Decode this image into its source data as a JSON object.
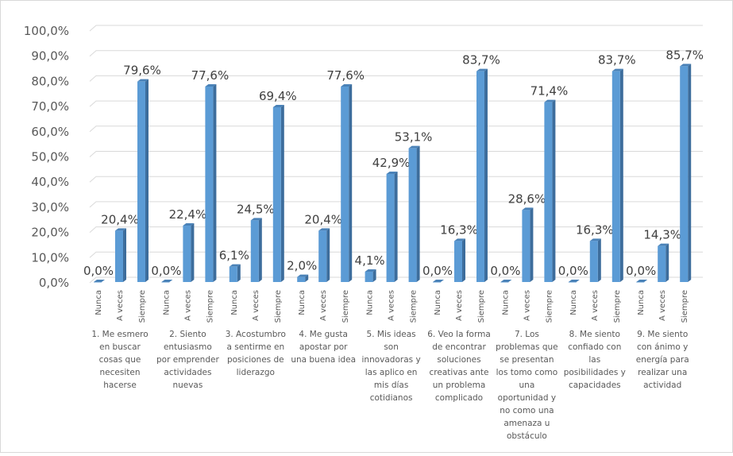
{
  "chart_data": {
    "type": "bar",
    "style": "3d-clustered-column",
    "title": "",
    "xlabel": "",
    "ylabel": "",
    "ylim": [
      0,
      100
    ],
    "yticks": [
      "0,0%",
      "10,0%",
      "20,0%",
      "30,0%",
      "40,0%",
      "50,0%",
      "60,0%",
      "70,0%",
      "80,0%",
      "90,0%",
      "100,0%"
    ],
    "grid": true,
    "subcategories": [
      "Nunca",
      "A veces",
      "Siempre"
    ],
    "bar_color": "#5b9bd5",
    "categories": [
      {
        "label": [
          "1. Me esmero",
          "en buscar",
          "cosas que",
          "necesiten",
          "hacerse"
        ],
        "values": [
          0.0,
          20.4,
          79.6
        ],
        "labels": [
          "0,0%",
          "20,4%",
          "79,6%"
        ]
      },
      {
        "label": [
          "2. Siento",
          "entusiasmo",
          "por emprender",
          "actividades",
          "nuevas"
        ],
        "values": [
          0.0,
          22.4,
          77.6
        ],
        "labels": [
          "0,0%",
          "22,4%",
          "77,6%"
        ]
      },
      {
        "label": [
          "3. Acostumbro",
          "a sentirme en",
          "posiciones de",
          "liderazgo"
        ],
        "values": [
          6.1,
          24.5,
          69.4
        ],
        "labels": [
          "6,1%",
          "24,5%",
          "69,4%"
        ]
      },
      {
        "label": [
          "4. Me gusta",
          "apostar por",
          "una buena idea"
        ],
        "values": [
          2.0,
          20.4,
          77.6
        ],
        "labels": [
          "2,0%",
          "20,4%",
          "77,6%"
        ]
      },
      {
        "label": [
          "5. Mis ideas",
          "son",
          "innovadoras y",
          "las aplico en",
          "mis días",
          "cotidianos"
        ],
        "values": [
          4.1,
          42.9,
          53.1
        ],
        "labels": [
          "4,1%",
          "42,9%",
          "53,1%"
        ]
      },
      {
        "label": [
          "6. Veo la forma",
          "de encontrar",
          "soluciones",
          "creativas ante",
          "un problema",
          "complicado"
        ],
        "values": [
          0.0,
          16.3,
          83.7
        ],
        "labels": [
          "0,0%",
          "16,3%",
          "83,7%"
        ]
      },
      {
        "label": [
          "7. Los",
          "problemas que",
          "se presentan",
          "los tomo como",
          "una",
          "oportunidad y",
          "no como una",
          "amenaza u",
          "obstáculo"
        ],
        "values": [
          0.0,
          28.6,
          71.4
        ],
        "labels": [
          "0,0%",
          "28,6%",
          "71,4%"
        ]
      },
      {
        "label": [
          "8. Me siento",
          "confiado con",
          "las",
          "posibilidades y",
          "capacidades"
        ],
        "values": [
          0.0,
          16.3,
          83.7
        ],
        "labels": [
          "0,0%",
          "16,3%",
          "83,7%"
        ]
      },
      {
        "label": [
          "9. Me siento",
          "con ánimo y",
          "energía para",
          "realizar una",
          "actividad"
        ],
        "values": [
          0.0,
          14.3,
          85.7
        ],
        "labels": [
          "0,0%",
          "14,3%",
          "85,7%"
        ]
      }
    ]
  }
}
